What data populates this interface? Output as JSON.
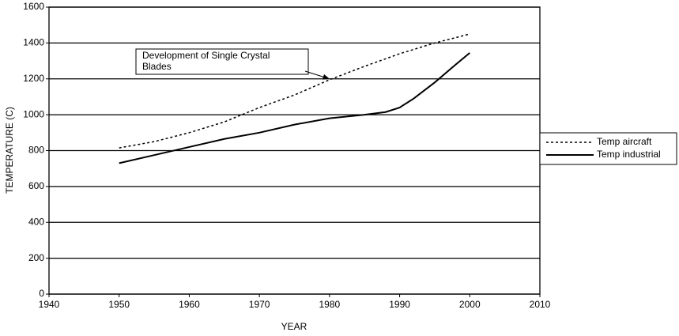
{
  "chart_data": {
    "type": "line",
    "xlabel": "YEAR",
    "ylabel": "TEMPERATURE (C)",
    "xlim": [
      1940,
      2010
    ],
    "xticks": [
      1940,
      1950,
      1960,
      1970,
      1980,
      1990,
      2000,
      2010
    ],
    "ylim": [
      0,
      1600
    ],
    "yticks": [
      0,
      200,
      400,
      600,
      800,
      1000,
      1200,
      1400,
      1600
    ],
    "grid": true,
    "legend": "right",
    "series": [
      {
        "name": "Temp aircraft",
        "color": "#000000",
        "dash": "dotted",
        "x": [
          1950,
          1955,
          1960,
          1965,
          1970,
          1975,
          1980,
          1985,
          1990,
          1995,
          2000
        ],
        "values": [
          815,
          850,
          900,
          960,
          1040,
          1110,
          1195,
          1270,
          1340,
          1400,
          1450
        ]
      },
      {
        "name": "Temp industrial",
        "color": "#000000",
        "dash": "solid",
        "x": [
          1950,
          1955,
          1960,
          1965,
          1970,
          1975,
          1980,
          1985,
          1988,
          1990,
          1992,
          1995,
          1998,
          2000
        ],
        "values": [
          730,
          775,
          820,
          865,
          900,
          945,
          980,
          1000,
          1015,
          1040,
          1090,
          1180,
          1280,
          1345
        ]
      }
    ],
    "annotation": {
      "lines": [
        "Development of Single Crystal",
        "Blades"
      ],
      "x": 1980,
      "y": 1200
    }
  }
}
